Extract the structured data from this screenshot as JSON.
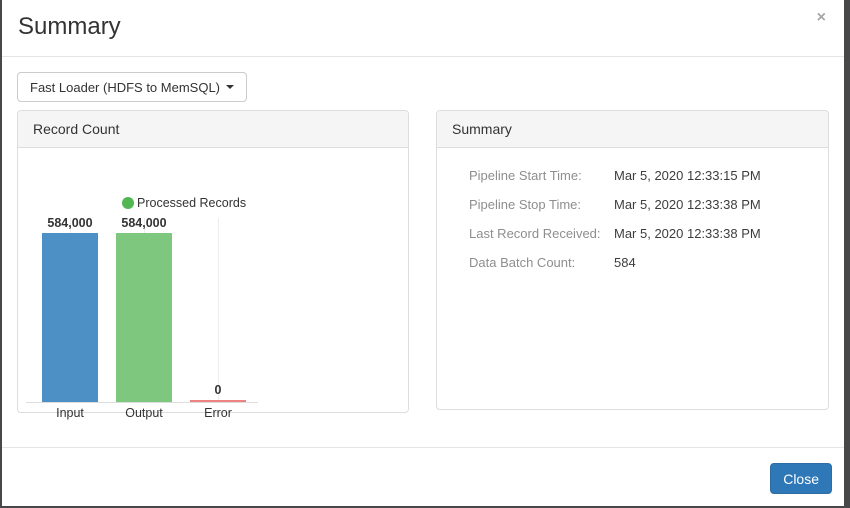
{
  "modal": {
    "title": "Summary",
    "close_icon": "×"
  },
  "dropdown": {
    "selected": "Fast Loader (HDFS to MemSQL)"
  },
  "record_count_panel": {
    "title": "Record Count"
  },
  "chart_data": {
    "type": "bar",
    "title": "Record Count",
    "legend": [
      {
        "label": "Processed Records",
        "color": "#51b753"
      }
    ],
    "legend_position": "top",
    "categories": [
      "Input",
      "Output",
      "Error"
    ],
    "values": [
      584000,
      584000,
      0
    ],
    "value_labels": [
      "584,000",
      "584,000",
      "0"
    ],
    "bar_colors": [
      "#4d90c6",
      "#7ec77e",
      "#ec8281"
    ],
    "ylim": [
      0,
      584000
    ],
    "xlabel": "",
    "ylabel": "",
    "grid": "faint-vertical-category-gridlines"
  },
  "summary_panel": {
    "title": "Summary",
    "rows": [
      {
        "label": "Pipeline Start Time:",
        "value": "Mar 5, 2020 12:33:15 PM"
      },
      {
        "label": "Pipeline Stop Time:",
        "value": "Mar 5, 2020 12:33:38 PM"
      },
      {
        "label": "Last Record Received:",
        "value": "Mar 5, 2020 12:33:38 PM"
      },
      {
        "label": "Data Batch Count:",
        "value": "584"
      }
    ]
  },
  "footer": {
    "close_label": "Close"
  },
  "colors": {
    "accent_blue": "#2f78b8",
    "bar_blue": "#4d90c6",
    "bar_green": "#7ec77e",
    "error_red": "#ec8281",
    "legend_green": "#51b753",
    "panel_header_bg": "#f5f5f5",
    "window_edge": "#48484a"
  }
}
